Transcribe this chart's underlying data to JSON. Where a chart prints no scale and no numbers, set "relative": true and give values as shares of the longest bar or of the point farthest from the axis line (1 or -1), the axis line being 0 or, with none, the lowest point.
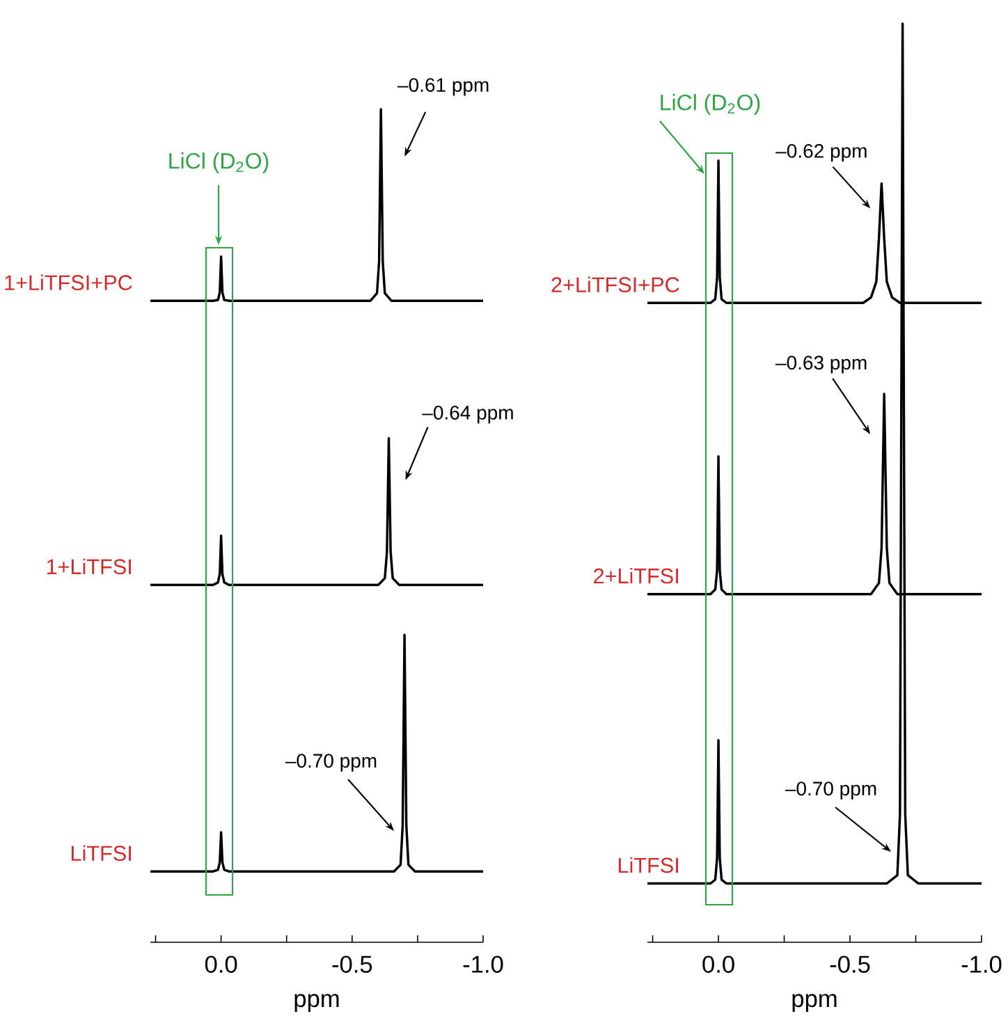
{
  "chart_data": [
    {
      "type": "line",
      "relative": true,
      "xlabel": "ppm",
      "xlim": [
        0.27,
        -1.0
      ],
      "xticks": [
        {
          "value": 0.25,
          "label": null
        },
        {
          "value": 0,
          "label": "0.0"
        },
        {
          "value": -0.25,
          "label": null
        },
        {
          "value": -0.5,
          "label": "-0.5"
        },
        {
          "value": -0.75,
          "label": null
        },
        {
          "value": -1.0,
          "label": "-1.0"
        }
      ],
      "series": [
        {
          "name": "LiTFSI",
          "color": "#000000",
          "x": [
            0.27,
            0.03,
            0.012,
            0.005,
            0,
            -0.005,
            -0.012,
            -0.03,
            -0.66,
            -0.685,
            -0.693,
            -0.7,
            -0.707,
            -0.715,
            -0.74,
            -1.0
          ],
          "values": [
            0.085,
            0.085,
            0.087,
            0.096,
            0.132,
            0.096,
            0.087,
            0.085,
            0.085,
            0.093,
            0.14,
            0.369,
            0.14,
            0.093,
            0.085,
            0.085
          ]
        },
        {
          "name": "1+LiTFSI",
          "color": "#000000",
          "x": [
            0.27,
            0.03,
            0.012,
            0.005,
            0,
            -0.005,
            -0.012,
            -0.03,
            -0.6,
            -0.625,
            -0.633,
            -0.64,
            -0.647,
            -0.655,
            -0.68,
            -1.0
          ],
          "values": [
            0.429,
            0.429,
            0.432,
            0.442,
            0.488,
            0.442,
            0.432,
            0.429,
            0.429,
            0.437,
            0.469,
            0.605,
            0.469,
            0.437,
            0.429,
            0.429
          ]
        },
        {
          "name": "1+LiTFSI+PC",
          "color": "#000000",
          "x": [
            0.27,
            0.03,
            0.012,
            0.005,
            0,
            -0.005,
            -0.012,
            -0.03,
            -0.57,
            -0.595,
            -0.603,
            -0.61,
            -0.617,
            -0.625,
            -0.65,
            -1.0
          ],
          "values": [
            0.77,
            0.77,
            0.771,
            0.78,
            0.823,
            0.78,
            0.771,
            0.77,
            0.77,
            0.779,
            0.817,
            1.0,
            0.817,
            0.779,
            0.77,
            0.77
          ]
        }
      ],
      "annotations": [
        {
          "text": "–0.61 ppm",
          "x": -0.61,
          "y": 1.0
        },
        {
          "text": "–0.64 ppm",
          "x": -0.64,
          "y": 0.605
        },
        "–0.70 ppm",
        "LiCl (D$_{2}$O)"
      ]
    },
    {
      "type": "line",
      "relative": true,
      "xlabel": "ppm",
      "xlim": [
        0.27,
        -1.0
      ],
      "xticks": [
        {
          "value": 0.25,
          "label": null
        },
        {
          "value": 0,
          "label": "0.0"
        },
        {
          "value": -0.25,
          "label": null
        },
        {
          "value": -0.5,
          "label": "-0.5"
        },
        {
          "value": -0.75,
          "label": null
        },
        {
          "value": -1.0,
          "label": "-1.0"
        }
      ],
      "series": [
        {
          "name": "LiTFSI",
          "color": "#000000",
          "x": [
            0.27,
            0.03,
            0.012,
            0.005,
            0,
            -0.005,
            -0.012,
            -0.03,
            -0.64,
            -0.68,
            -0.69,
            -0.7,
            -0.71,
            -0.72,
            -0.76,
            -1.0
          ],
          "values": [
            0.064,
            0.064,
            0.068,
            0.092,
            0.22,
            0.092,
            0.068,
            0.064,
            0.064,
            0.073,
            0.139,
            1.0,
            0.139,
            0.073,
            0.064,
            0.064
          ]
        },
        {
          "name": "2+LiTFSI",
          "color": "#000000",
          "x": [
            0.27,
            0.03,
            0.012,
            0.005,
            0,
            -0.005,
            -0.012,
            -0.03,
            -0.58,
            -0.61,
            -0.62,
            -0.63,
            -0.64,
            -0.65,
            -0.68,
            -1.0
          ],
          "values": [
            0.379,
            0.379,
            0.384,
            0.405,
            0.529,
            0.405,
            0.384,
            0.379,
            0.379,
            0.391,
            0.429,
            0.597,
            0.429,
            0.391,
            0.379,
            0.379
          ]
        },
        {
          "name": "2+LiTFSI+PC",
          "color": "#000000",
          "x": [
            0.27,
            0.03,
            0.012,
            0.005,
            0,
            -0.005,
            -0.012,
            -0.03,
            -0.55,
            -0.58,
            -0.6,
            -0.61,
            -0.62,
            -0.63,
            -0.64,
            -0.66,
            -0.69,
            -1.0
          ],
          "values": [
            0.696,
            0.696,
            0.7,
            0.724,
            0.851,
            0.724,
            0.7,
            0.696,
            0.696,
            0.702,
            0.719,
            0.766,
            0.826,
            0.766,
            0.719,
            0.702,
            0.696,
            0.696
          ]
        }
      ],
      "annotations": [
        {
          "text": "–0.62 ppm",
          "x": -0.62,
          "y": 0.826
        },
        {
          "text": "–0.63 ppm",
          "x": -0.63,
          "y": 0.597
        },
        "–0.70 ppm",
        "LiCl (D$_{2}$O)"
      ]
    }
  ]
}
